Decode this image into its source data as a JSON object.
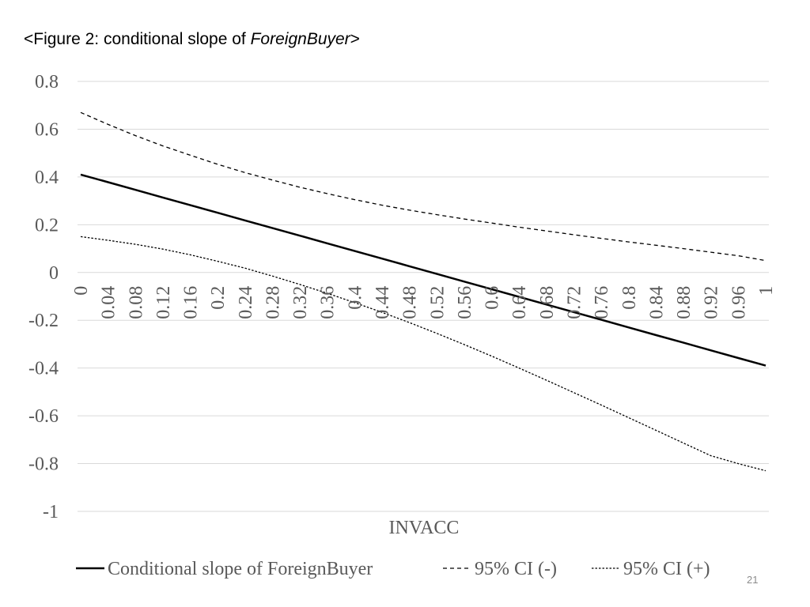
{
  "slide": {
    "title_prefix": "<Figure 2: conditional slope of ",
    "title_emphasis": "ForeignBuyer",
    "title_suffix": ">",
    "page_number": "21"
  },
  "colors": {
    "axis_text": "#595959",
    "gridline": "#d9d9d9",
    "series": "#000000"
  },
  "chart_data": {
    "type": "line",
    "title": "",
    "xlabel": "INVACC",
    "ylabel": "",
    "ylim": [
      -1,
      0.8
    ],
    "yticks": [
      "0.8",
      "0.6",
      "0.4",
      "0.2",
      "0",
      "-0.2",
      "-0.4",
      "-0.6",
      "-0.8",
      "-1"
    ],
    "x": [
      "0",
      "0.04",
      "0.08",
      "0.12",
      "0.16",
      "0.2",
      "0.24",
      "0.28",
      "0.32",
      "0.36",
      "0.4",
      "0.44",
      "0.48",
      "0.52",
      "0.56",
      "0.6",
      "0.64",
      "0.68",
      "0.72",
      "0.76",
      "0.8",
      "0.84",
      "0.88",
      "0.92",
      "0.96",
      "1"
    ],
    "grid": true,
    "legend_position": "bottom",
    "series": [
      {
        "name": "Conditional slope of ForeignBuyer",
        "style": "solid",
        "values": [
          0.41,
          0.378,
          0.346,
          0.314,
          0.282,
          0.25,
          0.218,
          0.186,
          0.154,
          0.122,
          0.09,
          0.058,
          0.026,
          -0.006,
          -0.038,
          -0.07,
          -0.102,
          -0.134,
          -0.166,
          -0.198,
          -0.23,
          -0.262,
          -0.294,
          -0.326,
          -0.358,
          -0.39
        ]
      },
      {
        "name": "95% CI (-)",
        "style": "dashed",
        "values": [
          0.67,
          0.62,
          0.573,
          0.53,
          0.491,
          0.453,
          0.418,
          0.387,
          0.357,
          0.33,
          0.305,
          0.282,
          0.261,
          0.242,
          0.224,
          0.207,
          0.19,
          0.174,
          0.158,
          0.143,
          0.128,
          0.114,
          0.1,
          0.085,
          0.07,
          0.05
        ]
      },
      {
        "name": "95% CI (+)",
        "style": "dotted",
        "values": [
          0.15,
          0.135,
          0.118,
          0.098,
          0.074,
          0.047,
          0.018,
          -0.015,
          -0.05,
          -0.087,
          -0.126,
          -0.167,
          -0.21,
          -0.255,
          -0.302,
          -0.35,
          -0.4,
          -0.451,
          -0.503,
          -0.555,
          -0.608,
          -0.661,
          -0.714,
          -0.767,
          -0.8,
          -0.83
        ]
      }
    ]
  }
}
